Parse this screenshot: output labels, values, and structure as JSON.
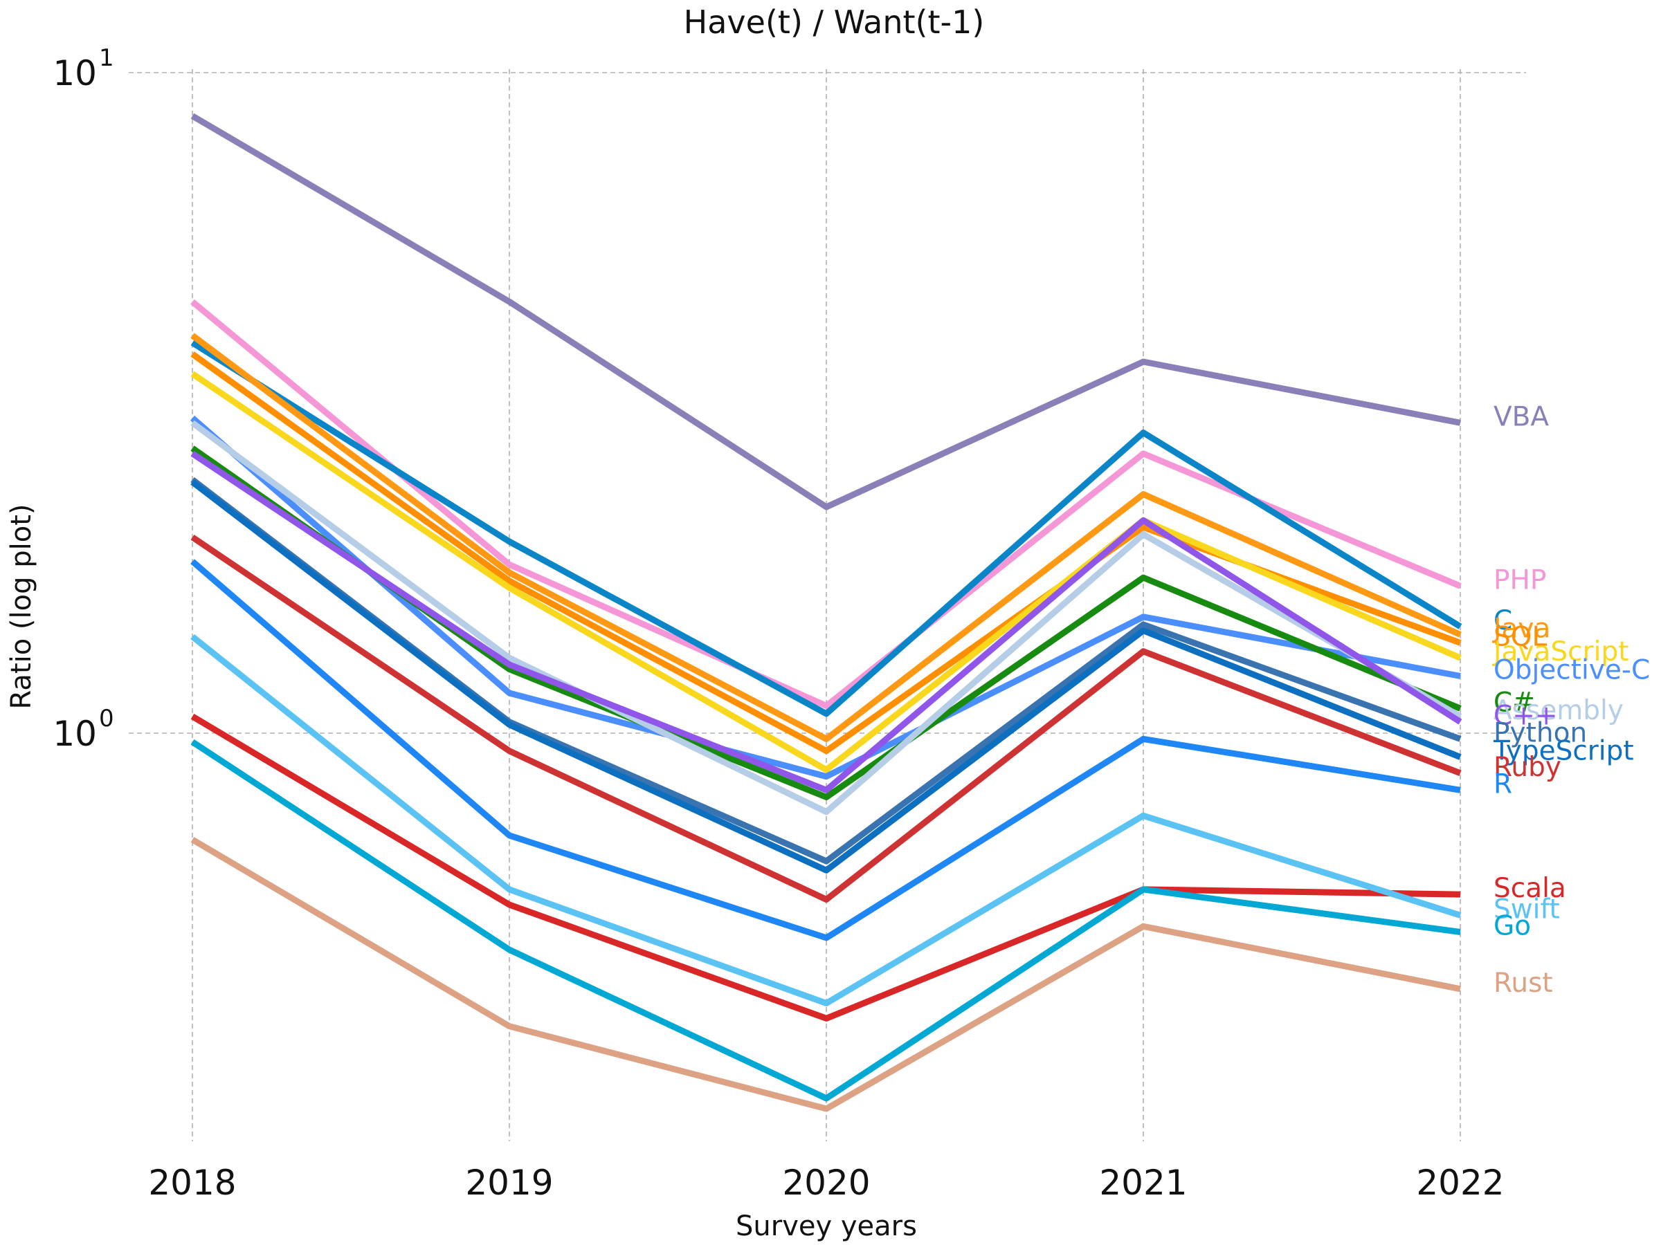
{
  "chart_data": {
    "type": "line",
    "title": "Have(t) / Want(t-1)",
    "xlabel": "Survey years",
    "ylabel": "Ratio (log plot)",
    "yscale": "log",
    "ylim": [
      0.25,
      10
    ],
    "yticks": [
      {
        "base": "10",
        "exp": "0",
        "value": 1
      },
      {
        "base": "10",
        "exp": "1",
        "value": 10
      }
    ],
    "x": [
      "2018",
      "2019",
      "2020",
      "2021",
      "2022"
    ],
    "grid": true,
    "legend": "labels at line ends (right)",
    "series": [
      {
        "name": "VBA",
        "color": "#8a80b7",
        "values": [
          8.6,
          4.5,
          2.2,
          3.65,
          2.95
        ]
      },
      {
        "name": "PHP",
        "color": "#f597d6",
        "values": [
          4.5,
          1.8,
          1.1,
          2.65,
          1.67
        ]
      },
      {
        "name": "C",
        "color": "#0a86c8",
        "values": [
          3.9,
          1.95,
          1.07,
          2.85,
          1.45
        ]
      },
      {
        "name": "Java",
        "color": "#ff9812",
        "values": [
          4.0,
          1.75,
          0.98,
          2.3,
          1.41
        ]
      },
      {
        "name": "SQL",
        "color": "#ff8f00",
        "values": [
          3.75,
          1.7,
          0.94,
          2.05,
          1.37
        ]
      },
      {
        "name": "JavaScript",
        "color": "#f9d71c",
        "values": [
          3.5,
          1.66,
          0.88,
          2.1,
          1.3
        ]
      },
      {
        "name": "Objective-C",
        "color": "#4a8eff",
        "values": [
          3.0,
          1.15,
          0.86,
          1.5,
          1.22
        ]
      },
      {
        "name": "C#",
        "color": "#178a10",
        "values": [
          2.7,
          1.25,
          0.8,
          1.72,
          1.09
        ]
      },
      {
        "name": "Assembly",
        "color": "#b5cde6",
        "values": [
          2.95,
          1.3,
          0.76,
          2.0,
          1.06
        ]
      },
      {
        "name": "C++",
        "color": "#9056ea",
        "values": [
          2.65,
          1.27,
          0.82,
          2.1,
          1.04
        ]
      },
      {
        "name": "Python",
        "color": "#3a74b0",
        "values": [
          2.42,
          1.04,
          0.64,
          1.46,
          0.98
        ]
      },
      {
        "name": "TypeScript",
        "color": "#0d6fc0",
        "values": [
          2.4,
          1.03,
          0.62,
          1.43,
          0.92
        ]
      },
      {
        "name": "Ruby",
        "color": "#cf3232",
        "values": [
          1.98,
          0.94,
          0.56,
          1.33,
          0.87
        ]
      },
      {
        "name": "R",
        "color": "#1f87f5",
        "values": [
          1.82,
          0.7,
          0.49,
          0.98,
          0.82
        ]
      },
      {
        "name": "Scala",
        "color": "#d92626",
        "values": [
          1.06,
          0.55,
          0.37,
          0.58,
          0.57
        ]
      },
      {
        "name": "Swift",
        "color": "#5ac3f3",
        "values": [
          1.4,
          0.58,
          0.39,
          0.75,
          0.53
        ]
      },
      {
        "name": "Go",
        "color": "#02a8d4",
        "values": [
          0.97,
          0.47,
          0.28,
          0.58,
          0.5
        ]
      },
      {
        "name": "Rust",
        "color": "#dda283",
        "values": [
          0.69,
          0.36,
          0.27,
          0.51,
          0.41
        ]
      }
    ]
  }
}
